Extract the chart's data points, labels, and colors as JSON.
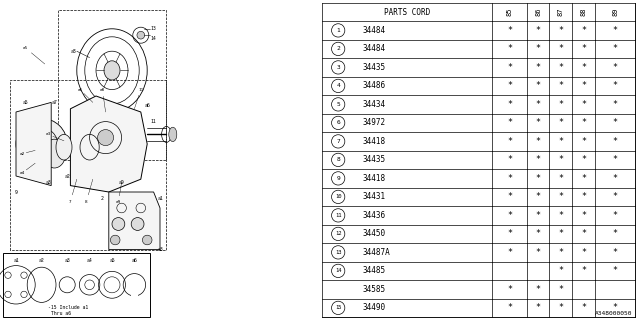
{
  "rows": [
    {
      "num": 1,
      "part": "34484",
      "marks": [
        1,
        1,
        1,
        1,
        1
      ]
    },
    {
      "num": 2,
      "part": "34484",
      "marks": [
        1,
        1,
        1,
        1,
        1
      ]
    },
    {
      "num": 3,
      "part": "34435",
      "marks": [
        1,
        1,
        1,
        1,
        1
      ]
    },
    {
      "num": 4,
      "part": "34486",
      "marks": [
        1,
        1,
        1,
        1,
        1
      ]
    },
    {
      "num": 5,
      "part": "34434",
      "marks": [
        1,
        1,
        1,
        1,
        1
      ]
    },
    {
      "num": 6,
      "part": "34972",
      "marks": [
        1,
        1,
        1,
        1,
        1
      ]
    },
    {
      "num": 7,
      "part": "34418",
      "marks": [
        1,
        1,
        1,
        1,
        1
      ]
    },
    {
      "num": 8,
      "part": "34435",
      "marks": [
        1,
        1,
        1,
        1,
        1
      ]
    },
    {
      "num": 9,
      "part": "34418",
      "marks": [
        1,
        1,
        1,
        1,
        1
      ]
    },
    {
      "num": 10,
      "part": "34431",
      "marks": [
        1,
        1,
        1,
        1,
        1
      ]
    },
    {
      "num": 11,
      "part": "34436",
      "marks": [
        1,
        1,
        1,
        1,
        1
      ]
    },
    {
      "num": 12,
      "part": "34450",
      "marks": [
        1,
        1,
        1,
        1,
        1
      ]
    },
    {
      "num": 13,
      "part": "34487A",
      "marks": [
        1,
        1,
        1,
        1,
        1
      ]
    },
    {
      "num": 14,
      "part": "34485",
      "marks": [
        0,
        0,
        1,
        1,
        1
      ],
      "part2": "34585",
      "marks2": [
        1,
        1,
        1,
        0,
        0
      ]
    },
    {
      "num": 15,
      "part": "34490",
      "marks": [
        1,
        1,
        1,
        1,
        1
      ]
    }
  ],
  "years": [
    "85",
    "86",
    "87",
    "88",
    "89"
  ],
  "footnote": "A348000050",
  "bg_color": "#ffffff"
}
